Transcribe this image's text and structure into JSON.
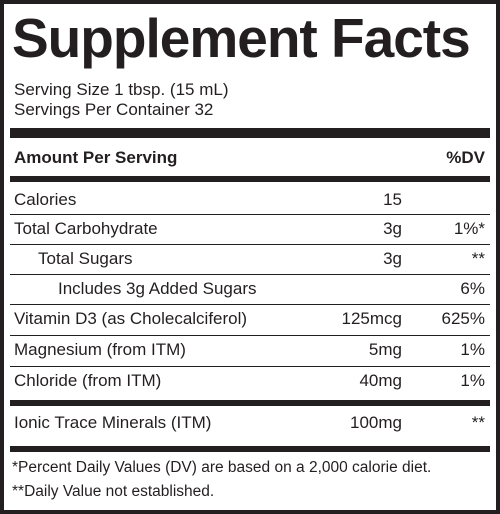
{
  "title": "Supplement Facts",
  "serving_size": "Serving Size 1 tbsp. (15 mL)",
  "servings_per_container": "Servings Per Container 32",
  "header": {
    "amount_per_serving": "Amount Per Serving",
    "dv": "%DV"
  },
  "rows": [
    {
      "name": "Calories",
      "amount": "15",
      "dv": ""
    },
    {
      "name": "Total Carbohydrate",
      "amount": "3g",
      "dv": "1%*"
    },
    {
      "name": "Total Sugars",
      "amount": "3g",
      "dv": "**"
    },
    {
      "name": "Includes 3g Added Sugars",
      "amount": "",
      "dv": "6%"
    },
    {
      "name": "Vitamin D3 (as Cholecalciferol)",
      "amount": "125mcg",
      "dv": "625%"
    },
    {
      "name": "Magnesium (from ITM)",
      "amount": "5mg",
      "dv": "1%"
    },
    {
      "name": "Chloride (from ITM)",
      "amount": "40mg",
      "dv": "1%"
    }
  ],
  "blend": {
    "name": "Ionic Trace Minerals (ITM)",
    "amount": "100mg",
    "dv": "**"
  },
  "footnotes": [
    "*Percent Daily Values (DV) are based on a 2,000 calorie diet.",
    "**Daily Value not established."
  ]
}
